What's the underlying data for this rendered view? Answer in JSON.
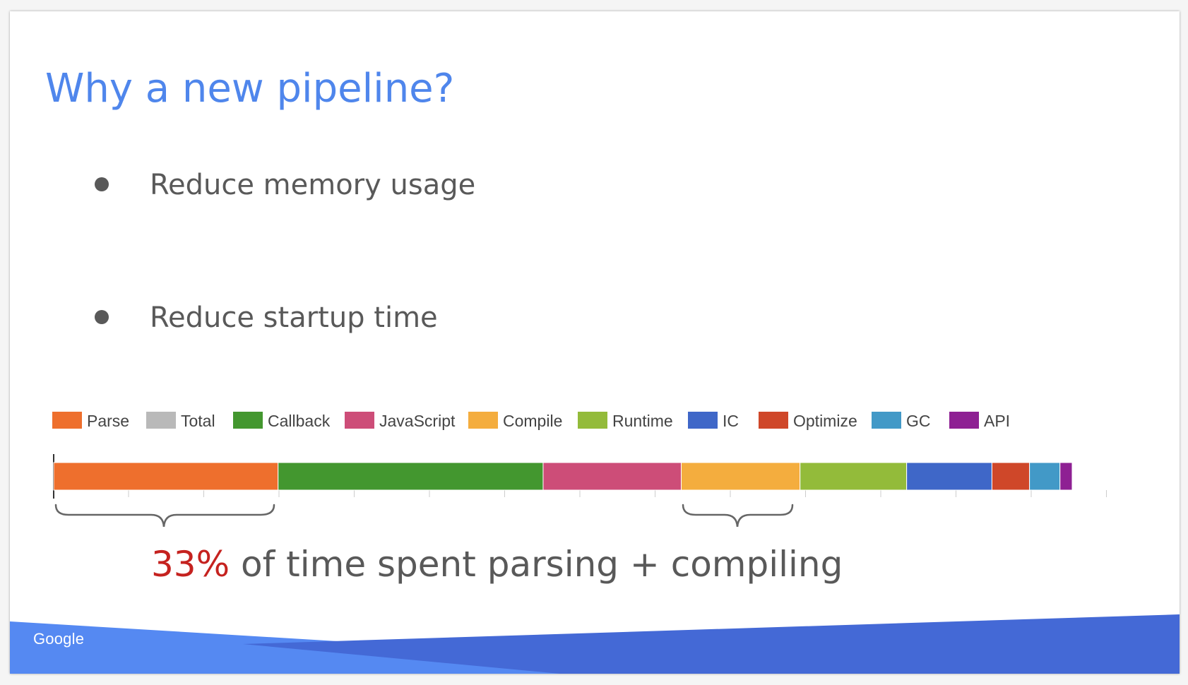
{
  "slide": {
    "title": "Why a new pipeline?",
    "bullets": [
      "Reduce memory usage",
      "Reduce startup time"
    ],
    "caption_highlight": "33%",
    "caption_rest": " of time spent parsing + compiling",
    "logo": "Google",
    "colors": {
      "title": "#4f86ec",
      "body_text": "#595959",
      "highlight": "#c5221f",
      "band_light": "#5589f2",
      "band_dark": "#4469d6"
    }
  },
  "chart_data": {
    "type": "bar",
    "orientation": "horizontal-stacked",
    "legend_position": "top",
    "series": [
      {
        "name": "Parse",
        "value": 22.1,
        "color": "#ee6f2d"
      },
      {
        "name": "Total",
        "value": 0,
        "color": "#b9b9b9"
      },
      {
        "name": "Callback",
        "value": 26.1,
        "color": "#43972f"
      },
      {
        "name": "JavaScript",
        "value": 13.6,
        "color": "#cd4d78"
      },
      {
        "name": "Compile",
        "value": 11.7,
        "color": "#f4ad3e"
      },
      {
        "name": "Runtime",
        "value": 10.5,
        "color": "#93bb3a"
      },
      {
        "name": "IC",
        "value": 8.4,
        "color": "#3f67c8"
      },
      {
        "name": "Optimize",
        "value": 3.7,
        "color": "#cf4729"
      },
      {
        "name": "GC",
        "value": 3.0,
        "color": "#4299c7"
      },
      {
        "name": "API",
        "value": 1.2,
        "color": "#8e2093"
      }
    ]
  }
}
